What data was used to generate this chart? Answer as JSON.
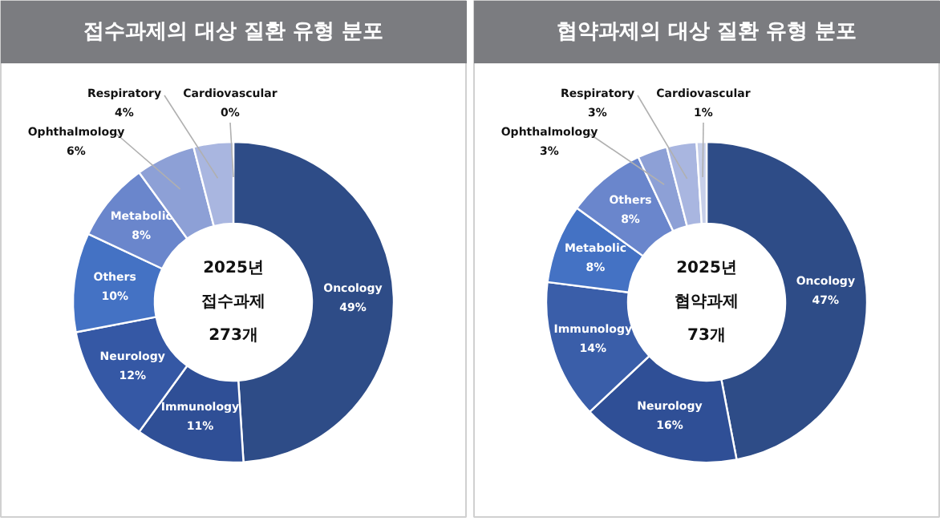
{
  "chart_data": [
    {
      "type": "donut",
      "title": "접수과제의 대상 질환 유형 분포",
      "categories": [
        "Oncology",
        "Immunology",
        "Neurology",
        "Others",
        "Metabolic",
        "Ophthalmology",
        "Respiratory",
        "Cardiovascular"
      ],
      "values": [
        49,
        11,
        12,
        10,
        8,
        6,
        4,
        0
      ],
      "colors": [
        "#2e4c87",
        "#2f4f96",
        "#3558a5",
        "#4472c4",
        "#6a86cc",
        "#8da0d6",
        "#a9b6e0",
        "#c7cfe9"
      ],
      "value_labels": [
        "49%",
        "11%",
        "12%",
        "10%",
        "8%",
        "6%",
        "4%",
        "0%"
      ],
      "annotations": [
        "2025년",
        "접수과제",
        "273개"
      ]
    },
    {
      "type": "donut",
      "title": "협약과제의 대상 질환 유형 분포",
      "categories": [
        "Oncology",
        "Neurology",
        "Immunology",
        "Metabolic",
        "Others",
        "Ophthalmology",
        "Respiratory",
        "Cardiovascular"
      ],
      "values": [
        47,
        16,
        14,
        8,
        8,
        3,
        3,
        1
      ],
      "colors": [
        "#2e4c87",
        "#2f4f96",
        "#3a5ea9",
        "#4472c4",
        "#6a86cc",
        "#8da0d6",
        "#a9b6e0",
        "#c7cfe9"
      ],
      "value_labels": [
        "47%",
        "16%",
        "14%",
        "8%",
        "8%",
        "3%",
        "3%",
        "1%"
      ],
      "annotations": [
        "2025년",
        "협약과제",
        "73개"
      ]
    }
  ]
}
